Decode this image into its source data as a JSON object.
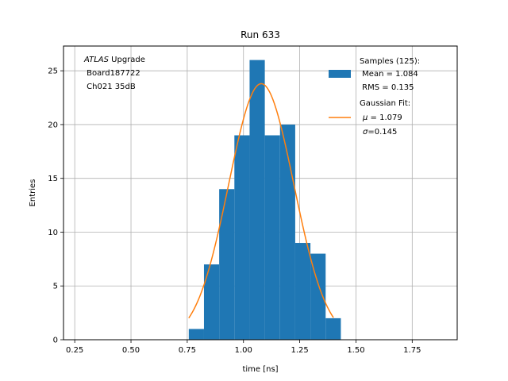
{
  "chart_data": {
    "type": "bar",
    "title": "Run 633",
    "xlabel": "time [ns]",
    "ylabel": "Entries",
    "xlim": [
      0.2,
      1.95
    ],
    "ylim": [
      0,
      27.3
    ],
    "xticks": [
      0.25,
      0.5,
      0.75,
      1.0,
      1.25,
      1.5,
      1.75
    ],
    "xtick_labels": [
      "0.25",
      "0.50",
      "0.75",
      "1.00",
      "1.25",
      "1.50",
      "1.75"
    ],
    "yticks": [
      0,
      5,
      10,
      15,
      20,
      25
    ],
    "ytick_labels": [
      "0",
      "5",
      "10",
      "15",
      "20",
      "25"
    ],
    "grid": true,
    "legend_position": "top-right",
    "colors": {
      "histogram": "#1f77b4",
      "fit": "#ff7f0e",
      "grid": "#b0b0b0"
    },
    "annotation": {
      "line1_italic": "ATLAS",
      "line1_rest": " Upgrade",
      "line2": " Board187722",
      "line3": " Ch021 35dB"
    },
    "series": [
      {
        "name": "Samples (125):",
        "type": "histogram",
        "bin_edges": [
          0.7568,
          0.8244,
          0.892,
          0.9596,
          1.0272,
          1.0948,
          1.1624,
          1.23,
          1.2976,
          1.3652,
          1.4328
        ],
        "counts": [
          1,
          7,
          14,
          19,
          26,
          19,
          20,
          9,
          8,
          2
        ],
        "stats": [
          "Mean = 1.084",
          "RMS = 0.135"
        ]
      },
      {
        "name": "Gaussian Fit:",
        "type": "line",
        "mu": 1.079,
        "sigma": 0.145,
        "amplitude": 23.8,
        "x_range": [
          0.7568,
          1.4
        ]
      }
    ],
    "legend": {
      "samples_title": "Samples (125):",
      "samples_mean": " Mean = 1.084",
      "samples_rms": " RMS = 0.135",
      "fit_title": "Gaussian Fit:",
      "fit_mu_symbol": "μ",
      "fit_mu_value": " = 1.079",
      "fit_sigma_symbol": "σ",
      "fit_sigma_value": "=0.145"
    }
  }
}
